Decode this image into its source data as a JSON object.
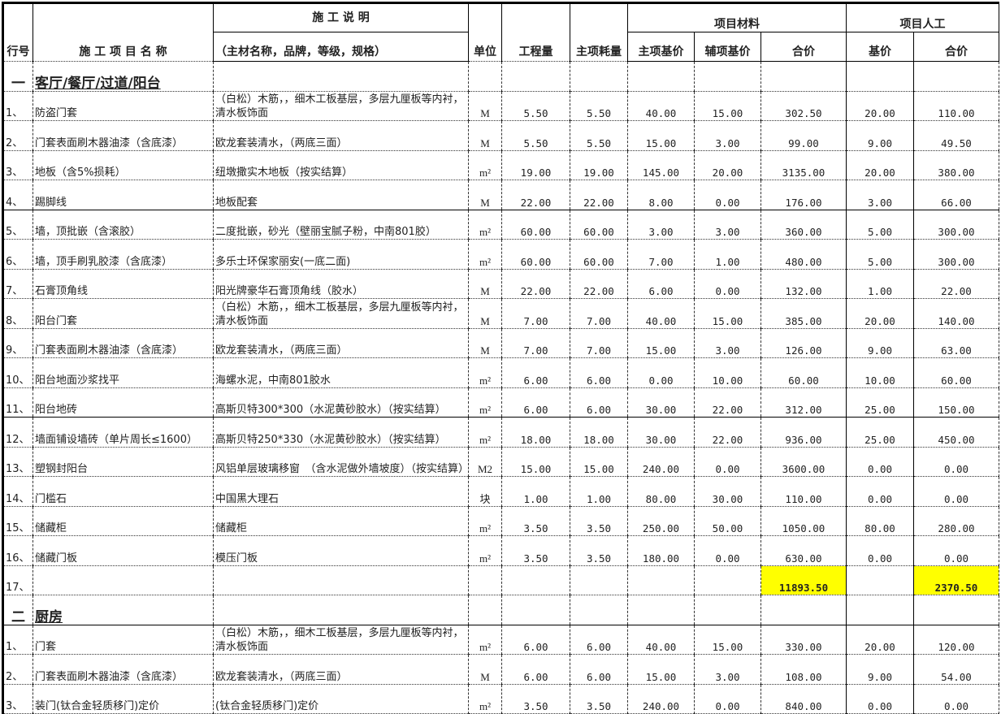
{
  "header": {
    "row_no": "行号",
    "item_name": "施 工 项 目 名 称",
    "desc_title": "施 工 说 明",
    "desc_sub": "（主材名称，品牌，等级，规格）",
    "unit": "单位",
    "quantity": "工程量",
    "main_consumption": "主项耗量",
    "materials_group": "项目材料",
    "main_base_price": "主项基价",
    "aux_base_price": "辅项基价",
    "material_total": "合价",
    "labor_group": "项目人工",
    "labor_base_price": "基价",
    "labor_total": "合价"
  },
  "sections": [
    {
      "number": "一",
      "title": "客厅/餐厅/过道/阳台",
      "rows": [
        {
          "no": "1、",
          "name": "防盗门套",
          "desc": "（白松）木筋，，细木工板基层，多层九厘板等内衬，清水板饰面",
          "unit": "M",
          "qty": "5.50",
          "cons": "5.50",
          "mbase": "40.00",
          "abase": "15.00",
          "mtotal": "302.50",
          "lbase": "20.00",
          "ltotal": "110.00"
        },
        {
          "no": "2、",
          "name": "门套表面刷木器油漆（含底漆）",
          "desc": "欧龙套装清水，（两底三面）",
          "unit": "M",
          "qty": "5.50",
          "cons": "5.50",
          "mbase": "15.00",
          "abase": "3.00",
          "mtotal": "99.00",
          "lbase": "9.00",
          "ltotal": "49.50"
        },
        {
          "no": "3、",
          "name": "地板（含5%损耗）",
          "desc": "纽墩撒实木地板（按实结算）",
          "unit": "m²",
          "qty": "19.00",
          "cons": "19.00",
          "mbase": "145.00",
          "abase": "20.00",
          "mtotal": "3135.00",
          "lbase": "20.00",
          "ltotal": "380.00"
        },
        {
          "no": "4、",
          "name": "踢脚线",
          "desc": "地板配套",
          "unit": "M",
          "qty": "22.00",
          "cons": "22.00",
          "mbase": "8.00",
          "abase": "0.00",
          "mtotal": "176.00",
          "lbase": "3.00",
          "ltotal": "66.00",
          "solid": true
        },
        {
          "no": "5、",
          "name": "墙，顶批嵌（含滚胶）",
          "desc": "二度批嵌，砂光（壁丽宝腻子粉，中南801胶）",
          "unit": "m²",
          "qty": "60.00",
          "cons": "60.00",
          "mbase": "3.00",
          "abase": "3.00",
          "mtotal": "360.00",
          "lbase": "5.00",
          "ltotal": "300.00"
        },
        {
          "no": "6、",
          "name": "墙，顶手刷乳胶漆（含底漆）",
          "desc": "多乐士环保家丽安(一底二面)",
          "unit": "m²",
          "qty": "60.00",
          "cons": "60.00",
          "mbase": "7.00",
          "abase": "1.00",
          "mtotal": "480.00",
          "lbase": "5.00",
          "ltotal": "300.00"
        },
        {
          "no": "7、",
          "name": "石膏顶角线",
          "desc": "阳光牌豪华石膏顶角线（胶水）",
          "unit": "M",
          "qty": "22.00",
          "cons": "22.00",
          "mbase": "6.00",
          "abase": "0.00",
          "mtotal": "132.00",
          "lbase": "1.00",
          "ltotal": "22.00"
        },
        {
          "no": "8、",
          "name": "阳台门套",
          "desc": "（白松）木筋，，细木工板基层，多层九厘板等内衬，清水板饰面",
          "unit": "M",
          "qty": "7.00",
          "cons": "7.00",
          "mbase": "40.00",
          "abase": "15.00",
          "mtotal": "385.00",
          "lbase": "20.00",
          "ltotal": "140.00"
        },
        {
          "no": "9、",
          "name": "门套表面刷木器油漆（含底漆）",
          "desc": "欧龙套装清水，（两底三面）",
          "unit": "M",
          "qty": "7.00",
          "cons": "7.00",
          "mbase": "15.00",
          "abase": "3.00",
          "mtotal": "126.00",
          "lbase": "9.00",
          "ltotal": "63.00"
        },
        {
          "no": "10、",
          "name": "阳台地面沙浆找平",
          "desc": "海螺水泥，中南801胶水",
          "unit": "m²",
          "qty": "6.00",
          "cons": "6.00",
          "mbase": "0.00",
          "abase": "10.00",
          "mtotal": "60.00",
          "lbase": "10.00",
          "ltotal": "60.00"
        },
        {
          "no": "11、",
          "name": "阳台地砖",
          "desc": "高斯贝特300*300（水泥黄砂胶水）（按实结算）",
          "unit": "m²",
          "qty": "6.00",
          "cons": "6.00",
          "mbase": "30.00",
          "abase": "22.00",
          "mtotal": "312.00",
          "lbase": "25.00",
          "ltotal": "150.00",
          "solid": true
        },
        {
          "no": "12、",
          "name": "墙面铺设墙砖（单片周长≤1600）",
          "desc": "高斯贝特250*330（水泥黄砂胶水）（按实结算）",
          "unit": "m²",
          "qty": "18.00",
          "cons": "18.00",
          "mbase": "30.00",
          "abase": "22.00",
          "mtotal": "936.00",
          "lbase": "25.00",
          "ltotal": "450.00"
        },
        {
          "no": "13、",
          "name": "塑钢封阳台",
          "desc": "风铝单层玻璃移窗　（含水泥做外墙坡度）（按实结算）",
          "unit": "M2",
          "qty": "15.00",
          "cons": "15.00",
          "mbase": "240.00",
          "abase": "0.00",
          "mtotal": "3600.00",
          "lbase": "0.00",
          "ltotal": "0.00"
        },
        {
          "no": "14、",
          "name": "门槛石",
          "desc": "中国黑大理石",
          "unit": "块",
          "qty": "1.00",
          "cons": "1.00",
          "mbase": "80.00",
          "abase": "30.00",
          "mtotal": "110.00",
          "lbase": "0.00",
          "ltotal": "0.00"
        },
        {
          "no": "15、",
          "name": "储藏柜",
          "desc": "储藏柜",
          "unit": "m²",
          "qty": "3.50",
          "cons": "3.50",
          "mbase": "250.00",
          "abase": "50.00",
          "mtotal": "1050.00",
          "lbase": "80.00",
          "ltotal": "280.00"
        },
        {
          "no": "16、",
          "name": "储藏门板",
          "desc": "模压门板",
          "unit": "m²",
          "qty": "3.50",
          "cons": "3.50",
          "mbase": "180.00",
          "abase": "0.00",
          "mtotal": "630.00",
          "lbase": "0.00",
          "ltotal": "0.00"
        },
        {
          "no": "17、",
          "name": "",
          "desc": "",
          "unit": "",
          "qty": "",
          "cons": "",
          "mbase": "",
          "abase": "",
          "mtotal": "11893.50",
          "lbase": "",
          "ltotal": "2370.50",
          "total": true
        }
      ]
    },
    {
      "number": "二",
      "title": "厨房",
      "rows": [
        {
          "no": "1、",
          "name": "门套",
          "desc": "（白松）木筋，，细木工板基层，多层九厘板等内衬，清水板饰面",
          "unit": "m²",
          "qty": "6.00",
          "cons": "6.00",
          "mbase": "40.00",
          "abase": "15.00",
          "mtotal": "330.00",
          "lbase": "20.00",
          "ltotal": "120.00"
        },
        {
          "no": "2、",
          "name": "门套表面刷木器油漆（含底漆）",
          "desc": "欧龙套装清水，（两底三面）",
          "unit": "M",
          "qty": "6.00",
          "cons": "6.00",
          "mbase": "15.00",
          "abase": "3.00",
          "mtotal": "108.00",
          "lbase": "9.00",
          "ltotal": "54.00"
        },
        {
          "no": "3、",
          "name": "装门(钛合金轻质移门)定价",
          "desc": "(钛合金轻质移门)定价",
          "unit": "m²",
          "qty": "3.50",
          "cons": "3.50",
          "mbase": "240.00",
          "abase": "0.00",
          "mtotal": "840.00",
          "lbase": "0.00",
          "ltotal": "0.00"
        }
      ]
    }
  ],
  "colors": {
    "total_highlight": "#ffff00"
  }
}
